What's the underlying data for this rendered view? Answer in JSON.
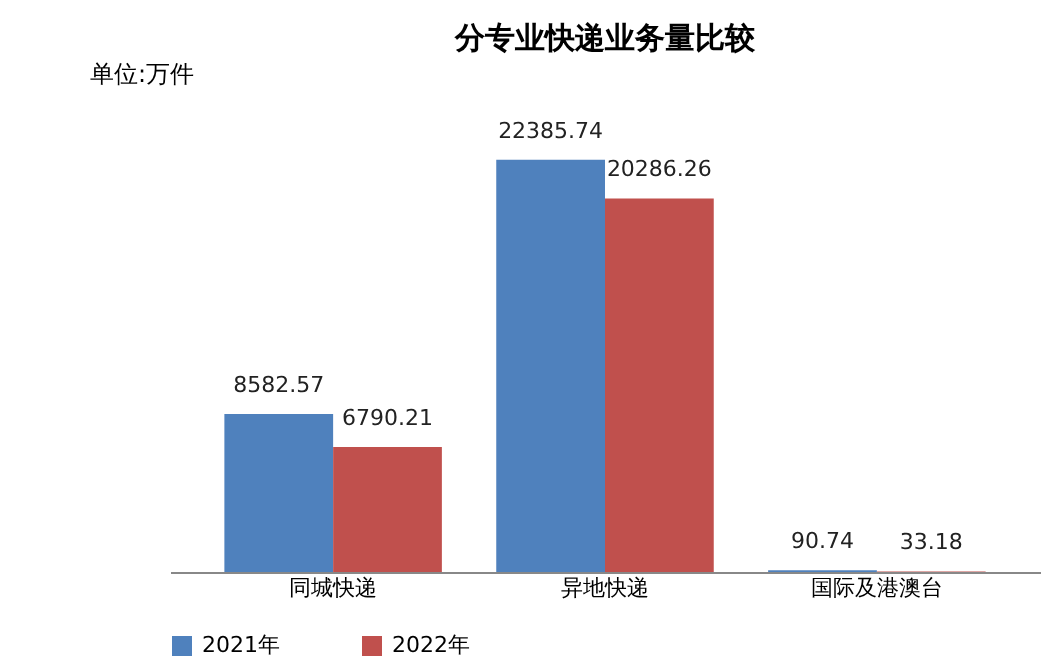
{
  "chart_data": {
    "type": "bar",
    "title": "分专业快递业务量比较",
    "annotations": [
      "单位:万件"
    ],
    "categories": [
      "同城快递",
      "异地快递",
      "国际及港澳台"
    ],
    "series": [
      {
        "name": "2021年",
        "color": "#4f81bd",
        "values": [
          8582.57,
          22385.74,
          90.74
        ]
      },
      {
        "name": "2022年",
        "color": "#c0504d",
        "values": [
          6790.21,
          20286.26,
          33.18
        ]
      }
    ],
    "data_labels": true,
    "legend": "bottom",
    "grid": false
  }
}
